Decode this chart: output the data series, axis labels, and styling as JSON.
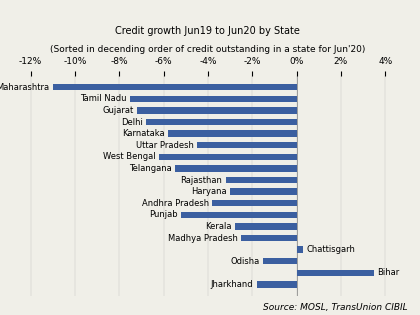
{
  "title_line1": "Credit growth Jun19 to Jun20 by State",
  "title_line2": "(Sorted in decending order of credit outstanding in a state for Jun'20)",
  "source_text": "Source: MOSL, TransUnion CIBIL",
  "states": [
    "Maharashtra",
    "Tamil Nadu",
    "Gujarat",
    "Delhi",
    "Karnataka",
    "Uttar Pradesh",
    "West Bengal",
    "Telangana",
    "Rajasthan",
    "Haryana",
    "Andhra Pradesh",
    "Punjab",
    "Kerala",
    "Madhya Pradesh",
    "Chattisgarh",
    "Odisha",
    "Bihar",
    "Jharkhand"
  ],
  "values": [
    -11.0,
    -7.5,
    -7.2,
    -6.8,
    -5.8,
    -4.5,
    -6.2,
    -5.5,
    -3.2,
    -3.0,
    -3.8,
    -5.2,
    -2.8,
    -2.5,
    0.3,
    -1.5,
    3.5,
    -1.8
  ],
  "bar_color": "#3b5fa0",
  "xlim": [
    -13,
    5
  ],
  "xticks": [
    -12,
    -10,
    -8,
    -6,
    -4,
    -2,
    0,
    2,
    4
  ],
  "xticklabels": [
    "-12%",
    "-10%",
    "-8%",
    "-6%",
    "-4%",
    "-2%",
    "0%",
    "2%",
    "4%"
  ],
  "background_color": "#f0efe8",
  "title_fontsize": 7.0,
  "label_fontsize": 6.0,
  "source_fontsize": 6.5,
  "tick_fontsize": 6.5
}
